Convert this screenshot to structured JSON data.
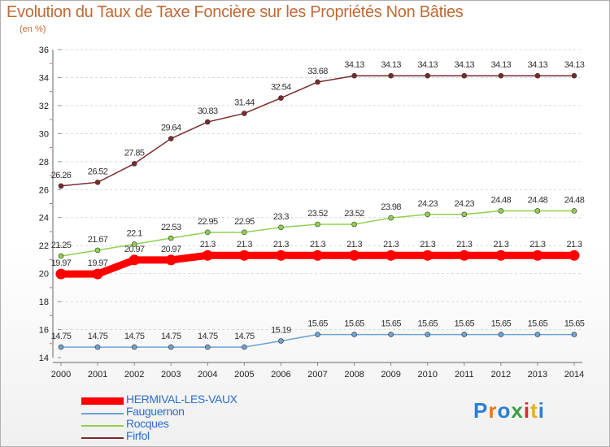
{
  "title": "Evolution du Taux de Taxe Foncière sur les Propriétés Non Bâties",
  "subtitle": "(en %)",
  "logo": "Proxiti",
  "chart_data": {
    "type": "line",
    "categories": [
      "2000",
      "2001",
      "2002",
      "2003",
      "2004",
      "2005",
      "2006",
      "2007",
      "2008",
      "2009",
      "2010",
      "2011",
      "2012",
      "2013",
      "2014"
    ],
    "ylim": [
      14,
      36
    ],
    "yticks": [
      14,
      16,
      18,
      20,
      22,
      24,
      26,
      28,
      30,
      32,
      34,
      36
    ],
    "grid": "horizontal dashed",
    "legend_position": "bottom-left",
    "series": [
      {
        "name": "HERMIVAL-LES-VAUX",
        "color": "#ff0000",
        "values": [
          19.97,
          19.97,
          20.97,
          20.97,
          21.3,
          21.3,
          21.3,
          21.3,
          21.3,
          21.3,
          21.3,
          21.3,
          21.3,
          21.3,
          21.3
        ],
        "labels": [
          "19.97",
          "19.97",
          "20.97",
          "20.97",
          "21.3",
          "21.3",
          "21.3",
          "21.3",
          "21.3",
          "21.3",
          "21.3",
          "21.3",
          "21.3",
          "21.3",
          "21.3"
        ]
      },
      {
        "name": "Fauguernon",
        "color": "#6fa3d0",
        "values": [
          14.75,
          14.75,
          14.75,
          14.75,
          14.75,
          14.75,
          15.19,
          15.65,
          15.65,
          15.65,
          15.65,
          15.65,
          15.65,
          15.65,
          15.65
        ],
        "labels": [
          "14.75",
          "14.75",
          "14.75",
          "14.75",
          "14.75",
          "14.75",
          "15.19",
          "15.65",
          "15.65",
          "15.65",
          "15.65",
          "15.65",
          "15.65",
          "15.65",
          "15.65"
        ]
      },
      {
        "name": "Rocques",
        "color": "#90d050",
        "values": [
          21.25,
          21.67,
          22.1,
          22.53,
          22.95,
          22.95,
          23.3,
          23.52,
          23.52,
          23.98,
          24.23,
          24.23,
          24.48,
          24.48,
          24.48
        ],
        "labels": [
          "21.25",
          "21.67",
          "22.1",
          "22.53",
          "22.95",
          "22.95",
          "23.3",
          "23.52",
          "23.52",
          "23.98",
          "24.23",
          "24.23",
          "24.48",
          "24.48",
          "24.48"
        ]
      },
      {
        "name": "Firfol",
        "color": "#7a2a2a",
        "values": [
          26.26,
          26.52,
          27.85,
          29.64,
          30.83,
          31.44,
          32.54,
          33.68,
          34.13,
          34.13,
          34.13,
          34.13,
          34.13,
          34.13,
          34.13
        ],
        "labels": [
          "26.26",
          "26.52",
          "27.85",
          "29.64",
          "30.83",
          "31.44",
          "32.54",
          "33.68",
          "34.13",
          "34.13",
          "34.13",
          "34.13",
          "34.13",
          "34.13",
          "34.13"
        ]
      }
    ]
  }
}
